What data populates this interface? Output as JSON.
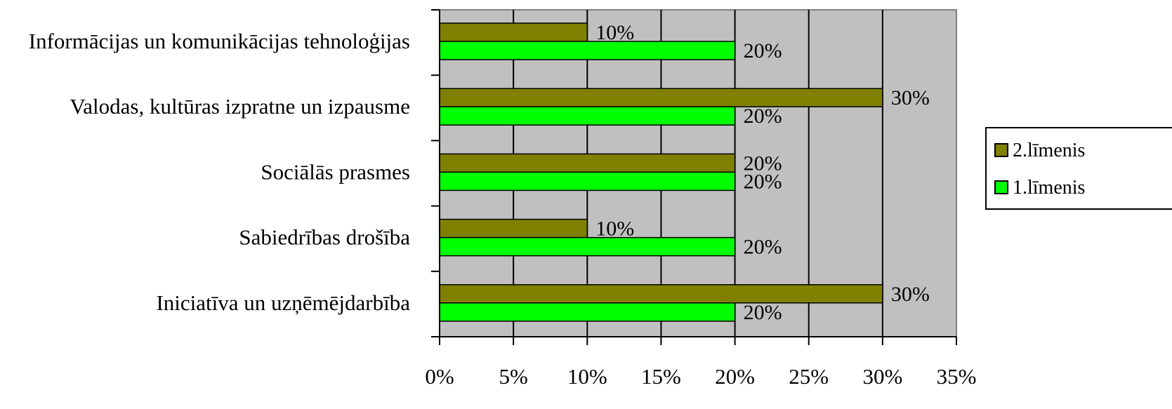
{
  "chart_data": {
    "type": "bar",
    "orientation": "horizontal",
    "categories": [
      "Informācijas un komunikācijas tehnoloģijas",
      "Valodas, kultūras izpratne un izpausme",
      "Sociālās prasmes",
      "Sabiedrības drošība",
      "Iniciatīva un uzņēmējdarbība"
    ],
    "series": [
      {
        "name": "2.līmenis",
        "color": "#808000",
        "values": [
          10,
          30,
          20,
          10,
          30
        ],
        "labels": [
          "10%",
          "30%",
          "20%",
          "10%",
          "30%"
        ]
      },
      {
        "name": "1.līmenis",
        "color": "#00ff00",
        "values": [
          20,
          20,
          20,
          20,
          20
        ],
        "labels": [
          "20%",
          "20%",
          "20%",
          "20%",
          "20%"
        ]
      }
    ],
    "xlim": [
      0,
      35
    ],
    "xticks": [
      "0%",
      "5%",
      "10%",
      "15%",
      "20%",
      "25%",
      "30%",
      "35%"
    ],
    "grid": true,
    "plot_background": "#c0c0c0",
    "legend_position": "right",
    "title": "",
    "xlabel": "",
    "ylabel": ""
  }
}
